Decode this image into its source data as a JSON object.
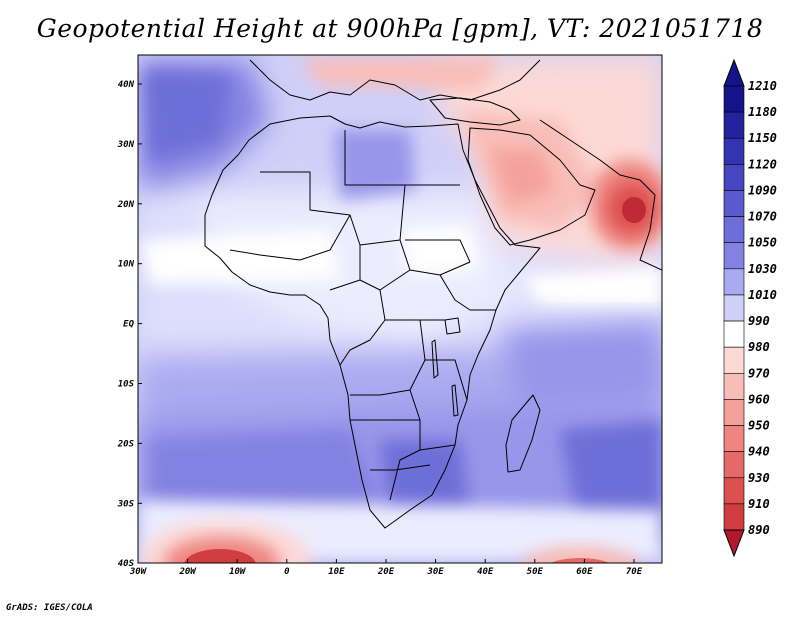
{
  "title": "Geopotential Height at 900hPa [gpm], VT: 2021051718",
  "credit": "GrADS: IGES/COLA",
  "colors": {
    "red_scale": [
      "#b2182b",
      "#c02a35",
      "#cf3d40",
      "#dc5050",
      "#e56a67",
      "#ee8580",
      "#f4a19b",
      "#f9bdb7",
      "#fcd9d5",
      "#fff0ee"
    ],
    "white": "#ffffff",
    "blue_scale": [
      "#ececfe",
      "#dedefc",
      "#cfcff8",
      "#bcbcf4",
      "#aaaaf0",
      "#9696ea",
      "#8282e2",
      "#6e6ed8",
      "#5a5acd",
      "#4646c0",
      "#3434b0",
      "#23239f",
      "#14148a"
    ]
  },
  "map": {
    "lon_ticks": [
      "30W",
      "20W",
      "10W",
      "0",
      "10E",
      "20E",
      "30E",
      "40E",
      "50E",
      "60E",
      "70E"
    ],
    "lat_ticks": [
      "40N",
      "30N",
      "20N",
      "10N",
      "EQ",
      "10S",
      "20S",
      "30S",
      "40S"
    ]
  },
  "colorbar": {
    "labels": [
      "1210",
      "1180",
      "1150",
      "1120",
      "1090",
      "1070",
      "1050",
      "1030",
      "1010",
      "990",
      "980",
      "970",
      "960",
      "950",
      "940",
      "930",
      "910",
      "890"
    ]
  }
}
